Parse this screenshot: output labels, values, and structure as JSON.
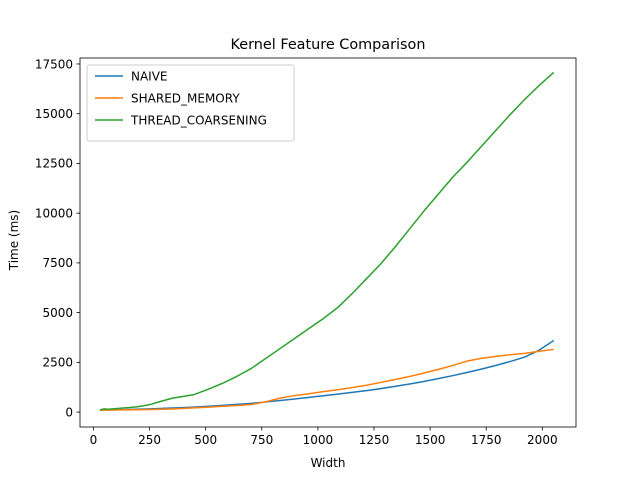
{
  "chart_data": {
    "type": "line",
    "title": "Kernel Feature Comparison",
    "xlabel": "Width",
    "ylabel": "Time (ms)",
    "xlim": [
      -60,
      2150
    ],
    "ylim": [
      -750,
      17800
    ],
    "xticks": [
      0,
      250,
      500,
      750,
      1000,
      1250,
      1500,
      1750,
      2000
    ],
    "yticks": [
      0,
      2500,
      5000,
      7500,
      10000,
      12500,
      15000,
      17500
    ],
    "grid": false,
    "legend_position": "top-left",
    "series": [
      {
        "name": "NAIVE",
        "color": "#1f77b4",
        "x": [
          32,
          64,
          128,
          192,
          256,
          320,
          384,
          448,
          512,
          576,
          640,
          704,
          768,
          832,
          896,
          960,
          1024,
          1088,
          1152,
          1216,
          1280,
          1344,
          1408,
          1472,
          1536,
          1600,
          1664,
          1728,
          1792,
          1856,
          1920,
          1984,
          2048
        ],
        "y": [
          100,
          110,
          120,
          140,
          160,
          190,
          215,
          250,
          290,
          340,
          390,
          440,
          510,
          580,
          660,
          740,
          820,
          900,
          990,
          1080,
          1180,
          1290,
          1410,
          1540,
          1680,
          1830,
          1990,
          2160,
          2340,
          2540,
          2760,
          3100,
          3580
        ]
      },
      {
        "name": "SHARED_MEMORY",
        "color": "#ff7f0e",
        "x": [
          32,
          64,
          128,
          192,
          256,
          320,
          384,
          448,
          512,
          576,
          640,
          704,
          768,
          832,
          896,
          960,
          1024,
          1088,
          1152,
          1216,
          1280,
          1344,
          1408,
          1472,
          1536,
          1600,
          1664,
          1728,
          1792,
          1856,
          1920,
          1984,
          2048
        ],
        "y": [
          90,
          100,
          110,
          120,
          130,
          150,
          175,
          210,
          250,
          290,
          330,
          380,
          520,
          700,
          830,
          920,
          1030,
          1120,
          1230,
          1350,
          1490,
          1640,
          1790,
          1960,
          2140,
          2340,
          2560,
          2700,
          2800,
          2880,
          2950,
          3050,
          3150
        ]
      },
      {
        "name": "THREAD_COARSENING",
        "color": "#2ca02c",
        "x": [
          32,
          48,
          64,
          128,
          192,
          224,
          256,
          288,
          320,
          352,
          384,
          448,
          512,
          576,
          640,
          704,
          768,
          832,
          896,
          960,
          1024,
          1088,
          1152,
          1216,
          1280,
          1344,
          1408,
          1472,
          1536,
          1600,
          1664,
          1728,
          1792,
          1856,
          1920,
          1984,
          2048
        ],
        "y": [
          120,
          160,
          140,
          200,
          260,
          320,
          390,
          500,
          600,
          700,
          760,
          880,
          1150,
          1450,
          1800,
          2200,
          2700,
          3200,
          3700,
          4200,
          4700,
          5250,
          5950,
          6700,
          7450,
          8300,
          9200,
          10100,
          10950,
          11800,
          12550,
          13350,
          14150,
          14950,
          15700,
          16400,
          17050
        ]
      }
    ]
  }
}
